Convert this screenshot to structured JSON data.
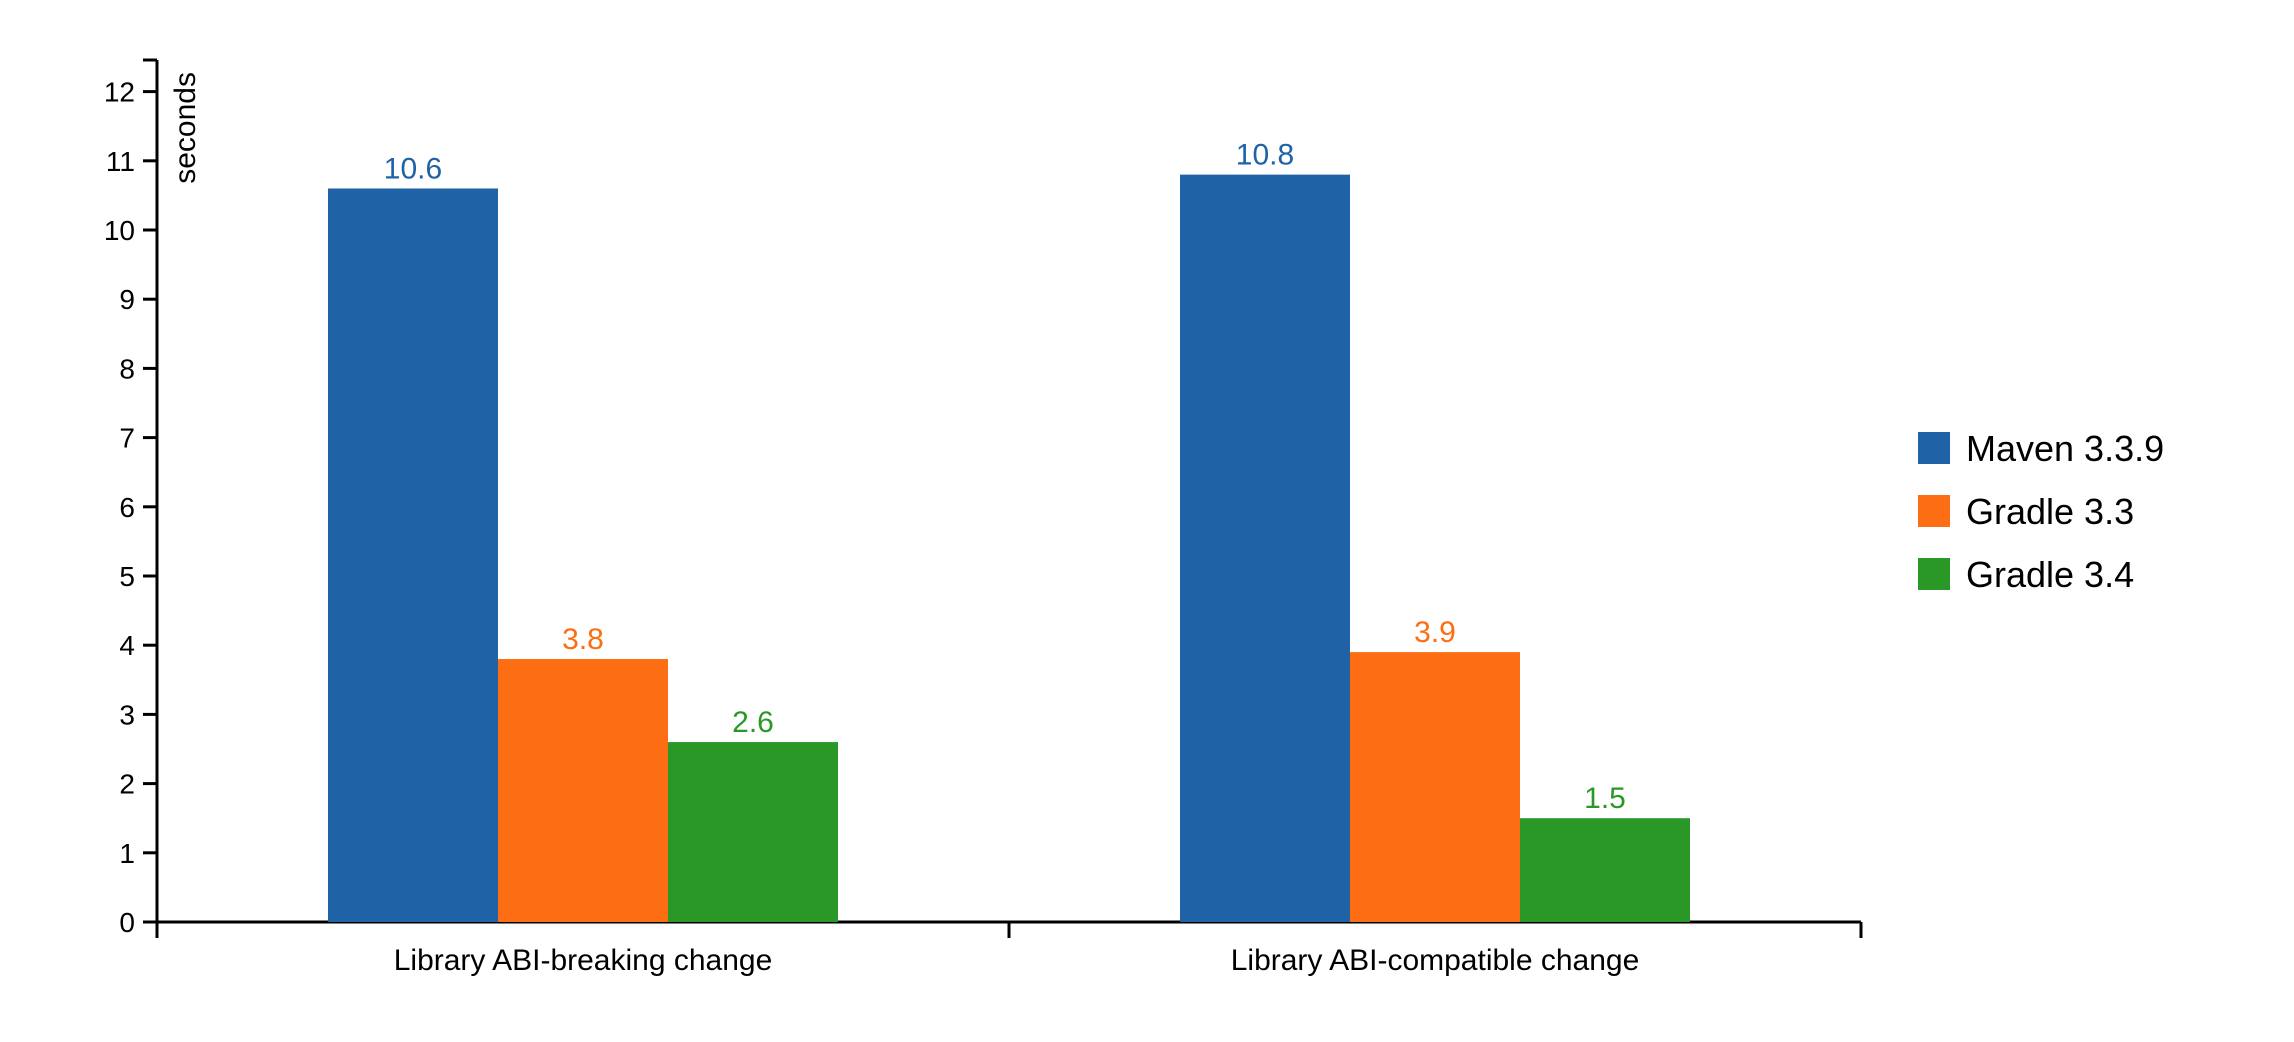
{
  "chart_data": {
    "type": "bar",
    "title": "",
    "xlabel": "",
    "ylabel": "seconds",
    "ylim": [
      0,
      12.5
    ],
    "yticks": [
      "0",
      "1",
      "2",
      "3",
      "4",
      "5",
      "6",
      "7",
      "8",
      "9",
      "10",
      "11",
      "12"
    ],
    "categories": [
      "Library ABI-breaking change",
      "Library ABI-compatible change"
    ],
    "series": [
      {
        "name": "Maven 3.3.9",
        "color": "#1f62a6",
        "values": [
          10.6,
          10.8
        ],
        "labels": [
          "10.6",
          "10.8"
        ]
      },
      {
        "name": "Gradle 3.3",
        "color": "#fd6d13",
        "values": [
          3.8,
          3.9
        ],
        "labels": [
          "3.8",
          "3.9"
        ]
      },
      {
        "name": "Gradle 3.4",
        "color": "#2a9827",
        "values": [
          2.6,
          1.5
        ],
        "labels": [
          "2.6",
          "1.5"
        ]
      }
    ],
    "legend_position": "right",
    "grid": false
  }
}
